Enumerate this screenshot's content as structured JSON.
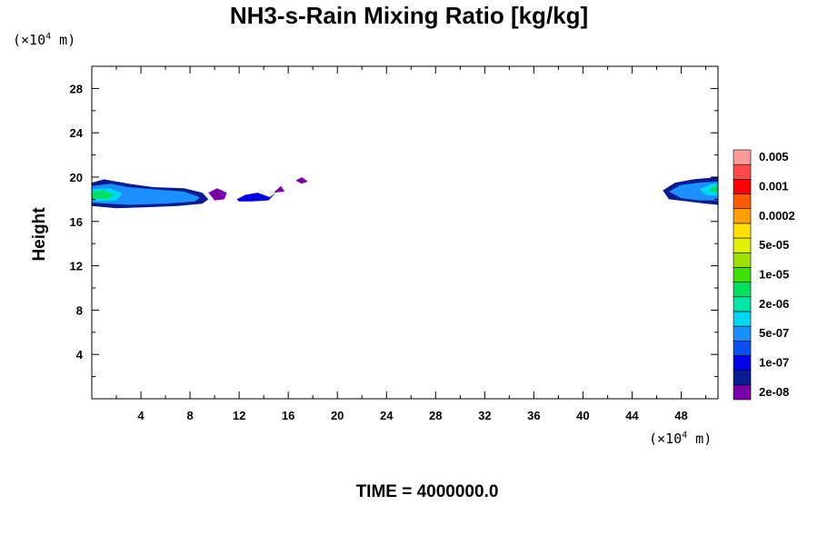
{
  "chart_data": {
    "type": "heatmap",
    "title": "NH3-s-Rain Mixing Ratio [kg/kg]",
    "xlabel": "",
    "ylabel": "Height",
    "x_unit_prefix": "(×10",
    "x_unit_exp": "4",
    "x_unit_suffix": " m)",
    "y_unit_prefix": "(×10",
    "y_unit_exp": "4",
    "y_unit_suffix": " m)",
    "xlim": [
      0,
      51
    ],
    "ylim": [
      0,
      30
    ],
    "x_ticks": [
      4,
      8,
      12,
      16,
      20,
      24,
      28,
      32,
      36,
      40,
      44,
      48
    ],
    "y_ticks": [
      4,
      8,
      12,
      16,
      20,
      24,
      28
    ],
    "colorbar": {
      "colors": [
        "#7a00a8",
        "#0a1a90",
        "#0000e6",
        "#0a4ff0",
        "#1a90ff",
        "#00d8f0",
        "#00e8a8",
        "#00e060",
        "#3fe000",
        "#9ee000",
        "#e0f000",
        "#ffe000",
        "#ffa000",
        "#ff5a00",
        "#ff0000",
        "#ff4a4a",
        "#ff9a9a"
      ],
      "labels": [
        "2e-08",
        "1e-07",
        "5e-07",
        "2e-06",
        "1e-05",
        "5e-05",
        "0.0002",
        "0.001",
        "0.005"
      ]
    },
    "regions": [
      {
        "name": "left-layer-outer",
        "level": 1,
        "points": [
          [
            0,
            19.5
          ],
          [
            1,
            19.8
          ],
          [
            3,
            19.4
          ],
          [
            5,
            19.1
          ],
          [
            7.5,
            19
          ],
          [
            9,
            18.6
          ],
          [
            9.5,
            18
          ],
          [
            9,
            17.6
          ],
          [
            7,
            17.4
          ],
          [
            5,
            17.3
          ],
          [
            2,
            17.2
          ],
          [
            0,
            17.4
          ]
        ]
      },
      {
        "name": "left-layer-mid",
        "level": 4,
        "points": [
          [
            0,
            19.2
          ],
          [
            1.5,
            19.4
          ],
          [
            3,
            19.1
          ],
          [
            5,
            18.9
          ],
          [
            7.5,
            18.7
          ],
          [
            8.8,
            18.2
          ],
          [
            8.4,
            17.8
          ],
          [
            6,
            17.6
          ],
          [
            3,
            17.5
          ],
          [
            0,
            17.7
          ]
        ]
      },
      {
        "name": "left-layer-inner",
        "level": 5,
        "points": [
          [
            0,
            18.9
          ],
          [
            1.5,
            19
          ],
          [
            2.5,
            18.5
          ],
          [
            2,
            17.9
          ],
          [
            0.5,
            17.8
          ],
          [
            0,
            18
          ]
        ]
      },
      {
        "name": "left-layer-core",
        "level": 7,
        "points": [
          [
            0,
            18.7
          ],
          [
            1,
            18.8
          ],
          [
            1.8,
            18.4
          ],
          [
            1.2,
            18
          ],
          [
            0,
            18.1
          ]
        ]
      },
      {
        "name": "left-fragment-1",
        "level": 0,
        "points": [
          [
            9.5,
            18.6
          ],
          [
            10.2,
            19
          ],
          [
            11,
            18.6
          ],
          [
            10.8,
            18
          ],
          [
            10,
            17.9
          ]
        ]
      },
      {
        "name": "left-fragment-2",
        "level": 2,
        "points": [
          [
            11.8,
            18
          ],
          [
            12.5,
            18.4
          ],
          [
            13.5,
            18.6
          ],
          [
            14.5,
            18.2
          ],
          [
            15,
            18.6
          ],
          [
            14.4,
            17.9
          ],
          [
            13,
            17.8
          ],
          [
            12,
            17.8
          ]
        ]
      },
      {
        "name": "left-fragment-3",
        "level": 0,
        "points": [
          [
            14.8,
            18.6
          ],
          [
            15.4,
            19.2
          ],
          [
            15.7,
            18.7
          ]
        ]
      },
      {
        "name": "left-fragment-4",
        "level": 0,
        "points": [
          [
            16.6,
            19.7
          ],
          [
            17.1,
            20
          ],
          [
            17.6,
            19.6
          ],
          [
            17.1,
            19.4
          ]
        ]
      },
      {
        "name": "right-layer-outer",
        "level": 1,
        "points": [
          [
            46.5,
            18.8
          ],
          [
            47.5,
            19.5
          ],
          [
            49,
            19.8
          ],
          [
            51,
            20
          ],
          [
            51,
            17.5
          ],
          [
            50,
            17.6
          ],
          [
            48.5,
            17.8
          ],
          [
            47,
            18
          ]
        ]
      },
      {
        "name": "right-layer-mid",
        "level": 4,
        "points": [
          [
            47,
            18.7
          ],
          [
            48,
            19.3
          ],
          [
            49.5,
            19.5
          ],
          [
            51,
            19.6
          ],
          [
            51,
            17.9
          ],
          [
            49.5,
            17.9
          ],
          [
            48,
            18.1
          ]
        ]
      },
      {
        "name": "right-layer-inner",
        "level": 5,
        "points": [
          [
            49.5,
            18.9
          ],
          [
            50.5,
            19.4
          ],
          [
            51,
            19.4
          ],
          [
            51,
            18.3
          ],
          [
            50,
            18.4
          ]
        ]
      },
      {
        "name": "right-layer-core",
        "level": 7,
        "points": [
          [
            50.3,
            19
          ],
          [
            51,
            19.2
          ],
          [
            51,
            18.6
          ],
          [
            50.5,
            18.7
          ]
        ]
      }
    ],
    "time_label": "TIME = 4000000.0"
  }
}
